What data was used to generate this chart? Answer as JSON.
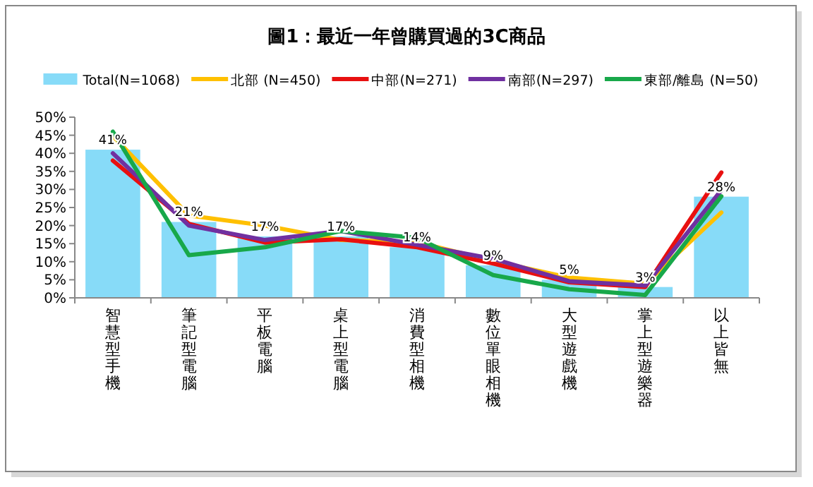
{
  "chart_data": {
    "type": "bar",
    "title": "圖1：最近一年曾購買過的3C商品",
    "categories": [
      "智慧型手機",
      "筆記型電腦",
      "平板電腦",
      "桌上型電腦",
      "消費型相機",
      "數位單眼相機",
      "大型遊戲機",
      "掌上型遊樂器",
      "以上皆無"
    ],
    "series": [
      {
        "name": "Total(N=1068)",
        "color": "#87dbf8",
        "values": [
          41,
          21,
          17,
          17,
          14,
          9,
          5,
          3,
          28
        ],
        "value_labels": [
          "41%",
          "21%",
          "17%",
          "17%",
          "14%",
          "9%",
          "5%",
          "3%",
          "28%"
        ]
      },
      {
        "name": "北部 (N=450)",
        "type": "line",
        "color": "#ffc000",
        "values": [
          44.8,
          22.8,
          20,
          16,
          15.4,
          10.2,
          5.6,
          3.9,
          23.6
        ]
      },
      {
        "name": "中部(N=271)",
        "type": "line",
        "color": "#e81010",
        "values": [
          38,
          20.5,
          15.3,
          16.2,
          14,
          9.5,
          4.3,
          3,
          34.7
        ]
      },
      {
        "name": "南部(N=297)",
        "type": "line",
        "color": "#7030a0",
        "values": [
          40,
          20,
          16,
          18.5,
          14.7,
          10.8,
          4.6,
          3.4,
          29.8
        ]
      },
      {
        "name": "東部/離島 (N=50)",
        "type": "line",
        "color": "#18a84a",
        "values": [
          46,
          11.8,
          14,
          18.5,
          16.6,
          6.3,
          2.4,
          0.8,
          28.1
        ]
      }
    ],
    "ylim": [
      0,
      50
    ],
    "yticks": [
      {
        "value": 0,
        "label": "0%"
      },
      {
        "value": 5,
        "label": "5%"
      },
      {
        "value": 10,
        "label": "10%"
      },
      {
        "value": 15,
        "label": "15%"
      },
      {
        "value": 20,
        "label": "20%"
      },
      {
        "value": 25,
        "label": "25%"
      },
      {
        "value": 30,
        "label": "30%"
      },
      {
        "value": 35,
        "label": "35%"
      },
      {
        "value": 40,
        "label": "40%"
      },
      {
        "value": 45,
        "label": "45%"
      },
      {
        "value": 50,
        "label": "50%"
      }
    ],
    "grid": false,
    "legend": "top"
  }
}
